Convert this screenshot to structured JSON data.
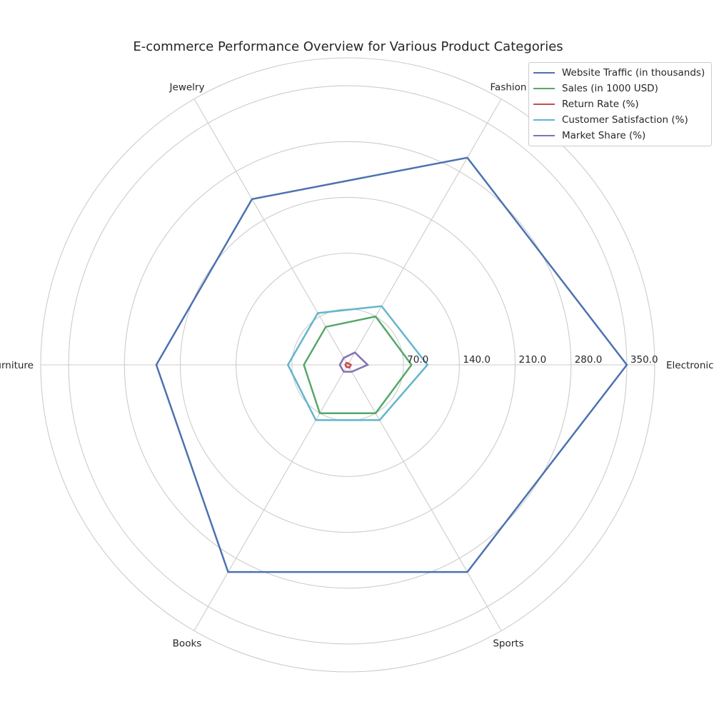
{
  "chart_data": {
    "type": "radar",
    "title": "E-commerce Performance Overview for Various Product Categories",
    "categories": [
      "Electronics",
      "Fashion",
      "Jewelry",
      "Furniture",
      "Books",
      "Sports"
    ],
    "radial_ticks": [
      "70.0",
      "140.0",
      "210.0",
      "280.0",
      "350.0"
    ],
    "radial_tick_values": [
      70,
      140,
      210,
      280,
      350
    ],
    "rlim": [
      0,
      385
    ],
    "grid": true,
    "legend_position": "top-right",
    "series": [
      {
        "name": "Website Traffic (in thousands)",
        "color": "#4c72b0",
        "values": [
          350,
          300,
          240,
          240,
          300,
          300
        ]
      },
      {
        "name": "Sales (in 1000 USD)",
        "color": "#55a868",
        "values": [
          80,
          70,
          55,
          55,
          70,
          70
        ]
      },
      {
        "name": "Return Rate (%)",
        "color": "#c44e52",
        "values": [
          4,
          2,
          3,
          3,
          3,
          4
        ]
      },
      {
        "name": "Customer Satisfaction (%)",
        "color": "#64b5cd",
        "values": [
          100,
          85,
          75,
          75,
          80,
          80
        ]
      },
      {
        "name": "Market Share (%)",
        "color": "#8172b3",
        "values": [
          25,
          18,
          10,
          10,
          10,
          10
        ]
      }
    ]
  }
}
